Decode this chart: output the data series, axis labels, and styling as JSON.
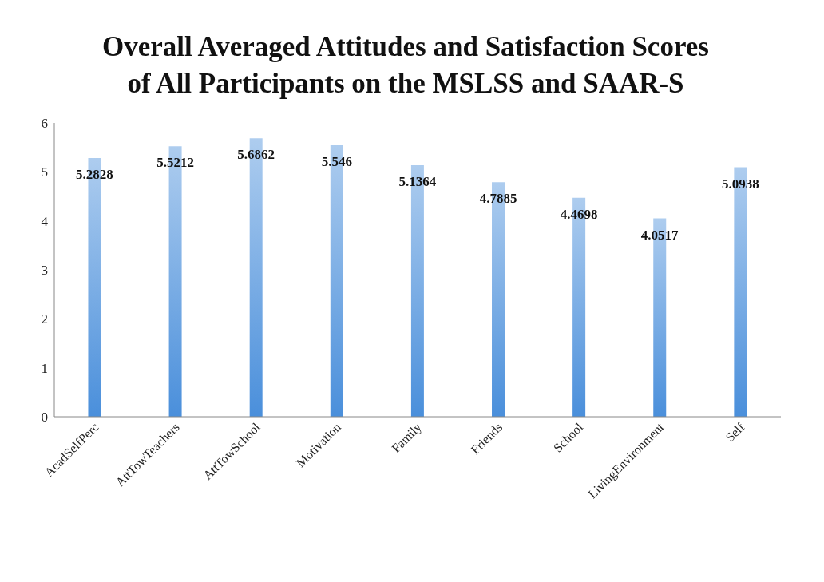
{
  "chart_data": {
    "type": "bar",
    "title": "Overall Averaged Attitudes and Satisfaction Scores of All Participants on the MSLSS and SAAR-S",
    "categories": [
      "AcadSelfPerc",
      "AttTowTeachers",
      "AttTowSchool",
      "Motivation",
      "Family",
      "Friends",
      "School",
      "LivingEnvironment",
      "Self"
    ],
    "values": [
      5.2828,
      5.5212,
      5.6862,
      5.546,
      5.1364,
      4.7885,
      4.4698,
      4.0517,
      5.0938
    ],
    "color": "#4a8fdb",
    "ylim": [
      0,
      6
    ],
    "yticks": [
      0,
      1,
      2,
      3,
      4,
      5,
      6
    ],
    "grid": false,
    "data_labels": true
  }
}
